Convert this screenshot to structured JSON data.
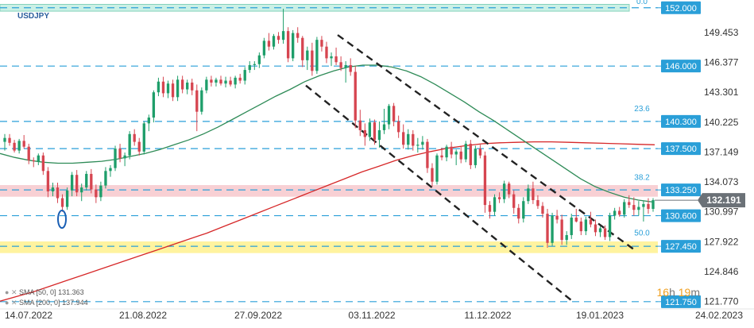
{
  "symbol": "USDJPY",
  "timer": {
    "hours": "16",
    "h_unit": "h",
    "minutes": "19",
    "m_unit": "m"
  },
  "sma": [
    {
      "label": "SMA [50, 0]",
      "value": "131.363",
      "color": "#2e8b57"
    },
    {
      "label": "SMA [200, 0]",
      "value": "137.944",
      "color": "#d62728"
    }
  ],
  "colors": {
    "bull": "#1e9e6a",
    "bear": "#d64550",
    "sma50": "#2e8b57",
    "sma200": "#d62728",
    "level": "#2a9fd8",
    "fib": "#2a9fd8",
    "price_tag": "#6b7177",
    "level_tag": "#2a9fd8",
    "zone_top": "#c8f0e4",
    "zone_pink": "#f7c8cc",
    "zone_yellow": "#fff29a"
  },
  "chart_data": {
    "type": "candlestick",
    "ylim": [
      121.0,
      152.8
    ],
    "y_ticks": [
      "149.453",
      "146.377",
      "143.301",
      "140.225",
      "137.149",
      "134.073",
      "130.997",
      "127.922",
      "124.846",
      "121.770"
    ],
    "x_ticks": [
      "14.07.2022",
      "21.08.2022",
      "27.09.2022",
      "03.11.2022",
      "11.12.2022",
      "19.01.2023",
      "24.02.2023"
    ],
    "current_price": "132.191",
    "levels": [
      {
        "value": "152.000"
      },
      {
        "value": "146.000"
      },
      {
        "value": "140.300"
      },
      {
        "value": "137.500"
      },
      {
        "value": "133.250"
      },
      {
        "value": "130.600"
      },
      {
        "value": "127.450"
      },
      {
        "value": "121.750"
      }
    ],
    "fib_labels": [
      "0.0",
      "23.6",
      "38.2",
      "50.0"
    ],
    "zones": [
      {
        "from": 151.65,
        "to": 152.35,
        "color": "#c8f0e4"
      },
      {
        "from": 132.55,
        "to": 133.75,
        "color": "#f7c8cc"
      },
      {
        "from": 126.75,
        "to": 127.95,
        "color": "#fff29a"
      }
    ],
    "sma_series": [
      {
        "name": "SMA [50, 0]",
        "values": [
          137.0,
          136.6,
          136.3,
          136.1,
          136.0,
          136.0,
          136.1,
          136.2,
          136.4,
          136.7,
          137.0,
          137.4,
          137.9,
          138.4,
          139.0,
          139.7,
          140.5,
          141.3,
          142.1,
          142.9,
          143.6,
          144.4,
          145.0,
          145.5,
          145.9,
          146.1,
          146.1,
          145.9,
          145.5,
          144.9,
          144.1,
          143.2,
          142.3,
          141.3,
          140.4,
          139.4,
          138.4,
          137.4,
          136.4,
          135.4,
          134.4,
          133.6,
          133.0,
          132.5,
          132.2,
          132.0
        ]
      },
      {
        "name": "SMA [200, 0]",
        "values": [
          121.8,
          122.3,
          122.8,
          123.4,
          124.0,
          124.6,
          125.2,
          125.8,
          126.4,
          127.0,
          127.6,
          128.2,
          128.8,
          129.5,
          130.2,
          130.9,
          131.6,
          132.3,
          133.0,
          133.7,
          134.4,
          135.1,
          135.7,
          136.3,
          136.8,
          137.2,
          137.55,
          137.8,
          138.0,
          138.1,
          138.15,
          138.2,
          138.2,
          138.15,
          138.1,
          138.05,
          138.0,
          137.95,
          137.9
        ]
      }
    ],
    "channel_lines": [
      {
        "start": 149.2,
        "end": 127.0
      },
      {
        "start": 144.0,
        "end": 121.7
      }
    ],
    "candles": [
      [
        138.2,
        139.0,
        137.3,
        138.6
      ],
      [
        138.6,
        139.0,
        137.8,
        138.1
      ],
      [
        138.1,
        138.4,
        137.1,
        137.3
      ],
      [
        137.3,
        138.5,
        137.0,
        138.3
      ],
      [
        138.3,
        138.9,
        137.5,
        137.7
      ],
      [
        137.7,
        138.0,
        135.9,
        136.3
      ],
      [
        136.3,
        136.6,
        135.6,
        136.2
      ],
      [
        136.2,
        137.0,
        135.8,
        136.8
      ],
      [
        136.8,
        137.1,
        134.8,
        135.2
      ],
      [
        135.2,
        135.6,
        132.5,
        133.1
      ],
      [
        133.1,
        134.0,
        132.6,
        133.5
      ],
      [
        133.5,
        134.0,
        131.9,
        132.4
      ],
      [
        132.4,
        132.8,
        131.0,
        131.5
      ],
      [
        131.5,
        133.5,
        131.2,
        133.2
      ],
      [
        133.2,
        135.1,
        132.6,
        134.8
      ],
      [
        134.8,
        135.3,
        132.6,
        133.0
      ],
      [
        133.0,
        133.9,
        132.1,
        133.5
      ],
      [
        133.5,
        135.2,
        133.2,
        134.9
      ],
      [
        134.9,
        135.4,
        132.9,
        133.3
      ],
      [
        133.3,
        133.8,
        131.9,
        132.5
      ],
      [
        132.5,
        134.1,
        132.1,
        133.7
      ],
      [
        133.7,
        135.6,
        133.4,
        135.2
      ],
      [
        135.2,
        135.8,
        134.6,
        135.5
      ],
      [
        135.5,
        137.8,
        135.2,
        137.5
      ],
      [
        137.5,
        138.0,
        136.1,
        136.5
      ],
      [
        136.5,
        137.1,
        135.7,
        136.8
      ],
      [
        136.8,
        139.3,
        136.4,
        139.0
      ],
      [
        139.0,
        139.5,
        137.8,
        138.2
      ],
      [
        138.2,
        138.6,
        136.8,
        137.2
      ],
      [
        137.2,
        140.3,
        136.9,
        140.1
      ],
      [
        140.1,
        141.0,
        139.3,
        140.7
      ],
      [
        140.7,
        143.5,
        140.2,
        143.3
      ],
      [
        143.3,
        144.8,
        142.9,
        144.4
      ],
      [
        144.4,
        144.9,
        142.8,
        143.2
      ],
      [
        143.2,
        144.5,
        142.7,
        144.2
      ],
      [
        144.2,
        144.6,
        142.4,
        142.8
      ],
      [
        142.8,
        145.0,
        142.4,
        144.6
      ],
      [
        144.6,
        145.0,
        143.2,
        143.6
      ],
      [
        143.6,
        144.6,
        143.1,
        144.3
      ],
      [
        144.3,
        144.7,
        143.0,
        143.5
      ],
      [
        143.5,
        144.1,
        139.3,
        141.3
      ],
      [
        141.3,
        143.8,
        141.0,
        143.5
      ],
      [
        143.5,
        144.9,
        143.2,
        144.6
      ],
      [
        144.6,
        145.0,
        143.9,
        144.3
      ],
      [
        144.3,
        144.8,
        143.9,
        144.6
      ],
      [
        144.6,
        145.0,
        144.0,
        144.2
      ],
      [
        144.2,
        144.9,
        143.8,
        144.5
      ],
      [
        144.5,
        144.9,
        143.9,
        144.1
      ],
      [
        144.1,
        145.0,
        143.7,
        144.8
      ],
      [
        144.8,
        145.2,
        144.2,
        144.5
      ],
      [
        144.5,
        145.9,
        144.1,
        145.6
      ],
      [
        145.6,
        146.5,
        145.3,
        146.1
      ],
      [
        146.1,
        146.5,
        145.6,
        146.2
      ],
      [
        146.2,
        147.4,
        145.8,
        147.1
      ],
      [
        147.1,
        148.9,
        146.8,
        148.6
      ],
      [
        148.6,
        149.4,
        147.6,
        148.0
      ],
      [
        148.0,
        149.3,
        147.7,
        149.1
      ],
      [
        149.1,
        149.5,
        148.3,
        148.7
      ],
      [
        148.7,
        151.9,
        148.3,
        149.6
      ],
      [
        149.6,
        150.0,
        146.4,
        146.8
      ],
      [
        146.8,
        149.7,
        146.5,
        149.4
      ],
      [
        149.4,
        150.0,
        148.4,
        148.9
      ],
      [
        148.9,
        149.1,
        145.9,
        146.6
      ],
      [
        146.6,
        148.0,
        145.6,
        147.6
      ],
      [
        147.6,
        148.4,
        145.0,
        145.5
      ],
      [
        145.5,
        149.0,
        145.2,
        148.7
      ],
      [
        148.7,
        149.1,
        147.5,
        148.0
      ],
      [
        148.0,
        148.5,
        146.3,
        146.8
      ],
      [
        146.8,
        147.4,
        146.0,
        147.0
      ],
      [
        147.0,
        147.9,
        146.1,
        146.4
      ],
      [
        146.4,
        147.0,
        145.5,
        145.8
      ],
      [
        145.8,
        146.5,
        144.3,
        146.1
      ],
      [
        146.1,
        146.8,
        145.0,
        145.4
      ],
      [
        145.4,
        146.0,
        139.6,
        140.4
      ],
      [
        140.4,
        141.5,
        138.8,
        139.4
      ],
      [
        139.4,
        140.1,
        137.8,
        138.7
      ],
      [
        138.7,
        140.6,
        138.3,
        140.2
      ],
      [
        140.2,
        140.5,
        137.9,
        138.4
      ],
      [
        138.4,
        140.3,
        137.6,
        139.4
      ],
      [
        139.4,
        141.6,
        139.0,
        140.0
      ],
      [
        140.0,
        142.1,
        139.5,
        141.9
      ],
      [
        141.9,
        142.2,
        139.8,
        140.3
      ],
      [
        140.3,
        140.9,
        138.6,
        139.2
      ],
      [
        139.2,
        140.0,
        137.5,
        137.9
      ],
      [
        137.9,
        139.5,
        137.4,
        139.0
      ],
      [
        139.0,
        139.4,
        137.3,
        137.8
      ],
      [
        137.8,
        138.6,
        137.1,
        137.9
      ],
      [
        137.9,
        138.8,
        137.4,
        138.2
      ],
      [
        138.2,
        138.5,
        135.0,
        135.5
      ],
      [
        135.5,
        136.0,
        133.6,
        134.1
      ],
      [
        134.1,
        137.0,
        133.8,
        136.8
      ],
      [
        136.8,
        137.6,
        136.3,
        136.6
      ],
      [
        136.6,
        137.9,
        136.2,
        137.7
      ],
      [
        137.7,
        138.2,
        136.5,
        136.9
      ],
      [
        136.9,
        137.4,
        135.8,
        137.2
      ],
      [
        137.2,
        137.7,
        136.0,
        136.4
      ],
      [
        136.4,
        138.3,
        136.1,
        138.0
      ],
      [
        138.0,
        138.4,
        135.4,
        135.8
      ],
      [
        135.8,
        137.8,
        135.5,
        137.5
      ],
      [
        137.5,
        137.9,
        136.5,
        136.8
      ],
      [
        136.8,
        137.2,
        130.9,
        131.7
      ],
      [
        131.7,
        132.1,
        130.3,
        131.0
      ],
      [
        131.0,
        132.8,
        130.6,
        132.5
      ],
      [
        132.5,
        133.0,
        131.9,
        132.3
      ],
      [
        132.3,
        134.2,
        131.9,
        133.9
      ],
      [
        133.9,
        134.1,
        132.4,
        132.8
      ],
      [
        132.8,
        133.2,
        130.8,
        131.4
      ],
      [
        131.4,
        131.8,
        129.8,
        130.3
      ],
      [
        130.3,
        132.5,
        129.9,
        132.1
      ],
      [
        132.1,
        133.8,
        131.8,
        133.4
      ],
      [
        133.4,
        134.1,
        131.8,
        132.2
      ],
      [
        132.2,
        132.7,
        131.3,
        131.6
      ],
      [
        131.6,
        132.0,
        130.4,
        130.8
      ],
      [
        130.8,
        131.3,
        127.3,
        127.8
      ],
      [
        127.8,
        130.9,
        127.5,
        130.6
      ],
      [
        130.6,
        131.2,
        129.8,
        130.2
      ],
      [
        130.2,
        130.7,
        127.6,
        128.1
      ],
      [
        128.1,
        129.0,
        127.6,
        128.6
      ],
      [
        128.6,
        130.8,
        128.2,
        130.4
      ],
      [
        130.4,
        131.3,
        129.9,
        130.0
      ],
      [
        130.0,
        130.4,
        128.6,
        129.0
      ],
      [
        129.0,
        130.5,
        128.6,
        130.2
      ],
      [
        130.2,
        131.0,
        129.4,
        129.7
      ],
      [
        129.7,
        130.2,
        128.5,
        128.9
      ],
      [
        128.9,
        129.5,
        128.4,
        129.3
      ],
      [
        129.3,
        129.6,
        128.1,
        128.4
      ],
      [
        128.4,
        130.9,
        128.0,
        130.6
      ],
      [
        130.6,
        131.4,
        130.2,
        131.1
      ],
      [
        131.1,
        131.5,
        130.5,
        130.7
      ],
      [
        130.7,
        132.3,
        130.4,
        132.0
      ],
      [
        132.0,
        132.7,
        131.4,
        131.7
      ],
      [
        131.7,
        132.5,
        130.6,
        131.2
      ],
      [
        131.2,
        132.1,
        130.6,
        131.5
      ],
      [
        131.5,
        132.1,
        130.0,
        131.8
      ],
      [
        131.8,
        132.4,
        130.8,
        131.3
      ],
      [
        131.3,
        132.4,
        131.0,
        132.2
      ]
    ]
  }
}
